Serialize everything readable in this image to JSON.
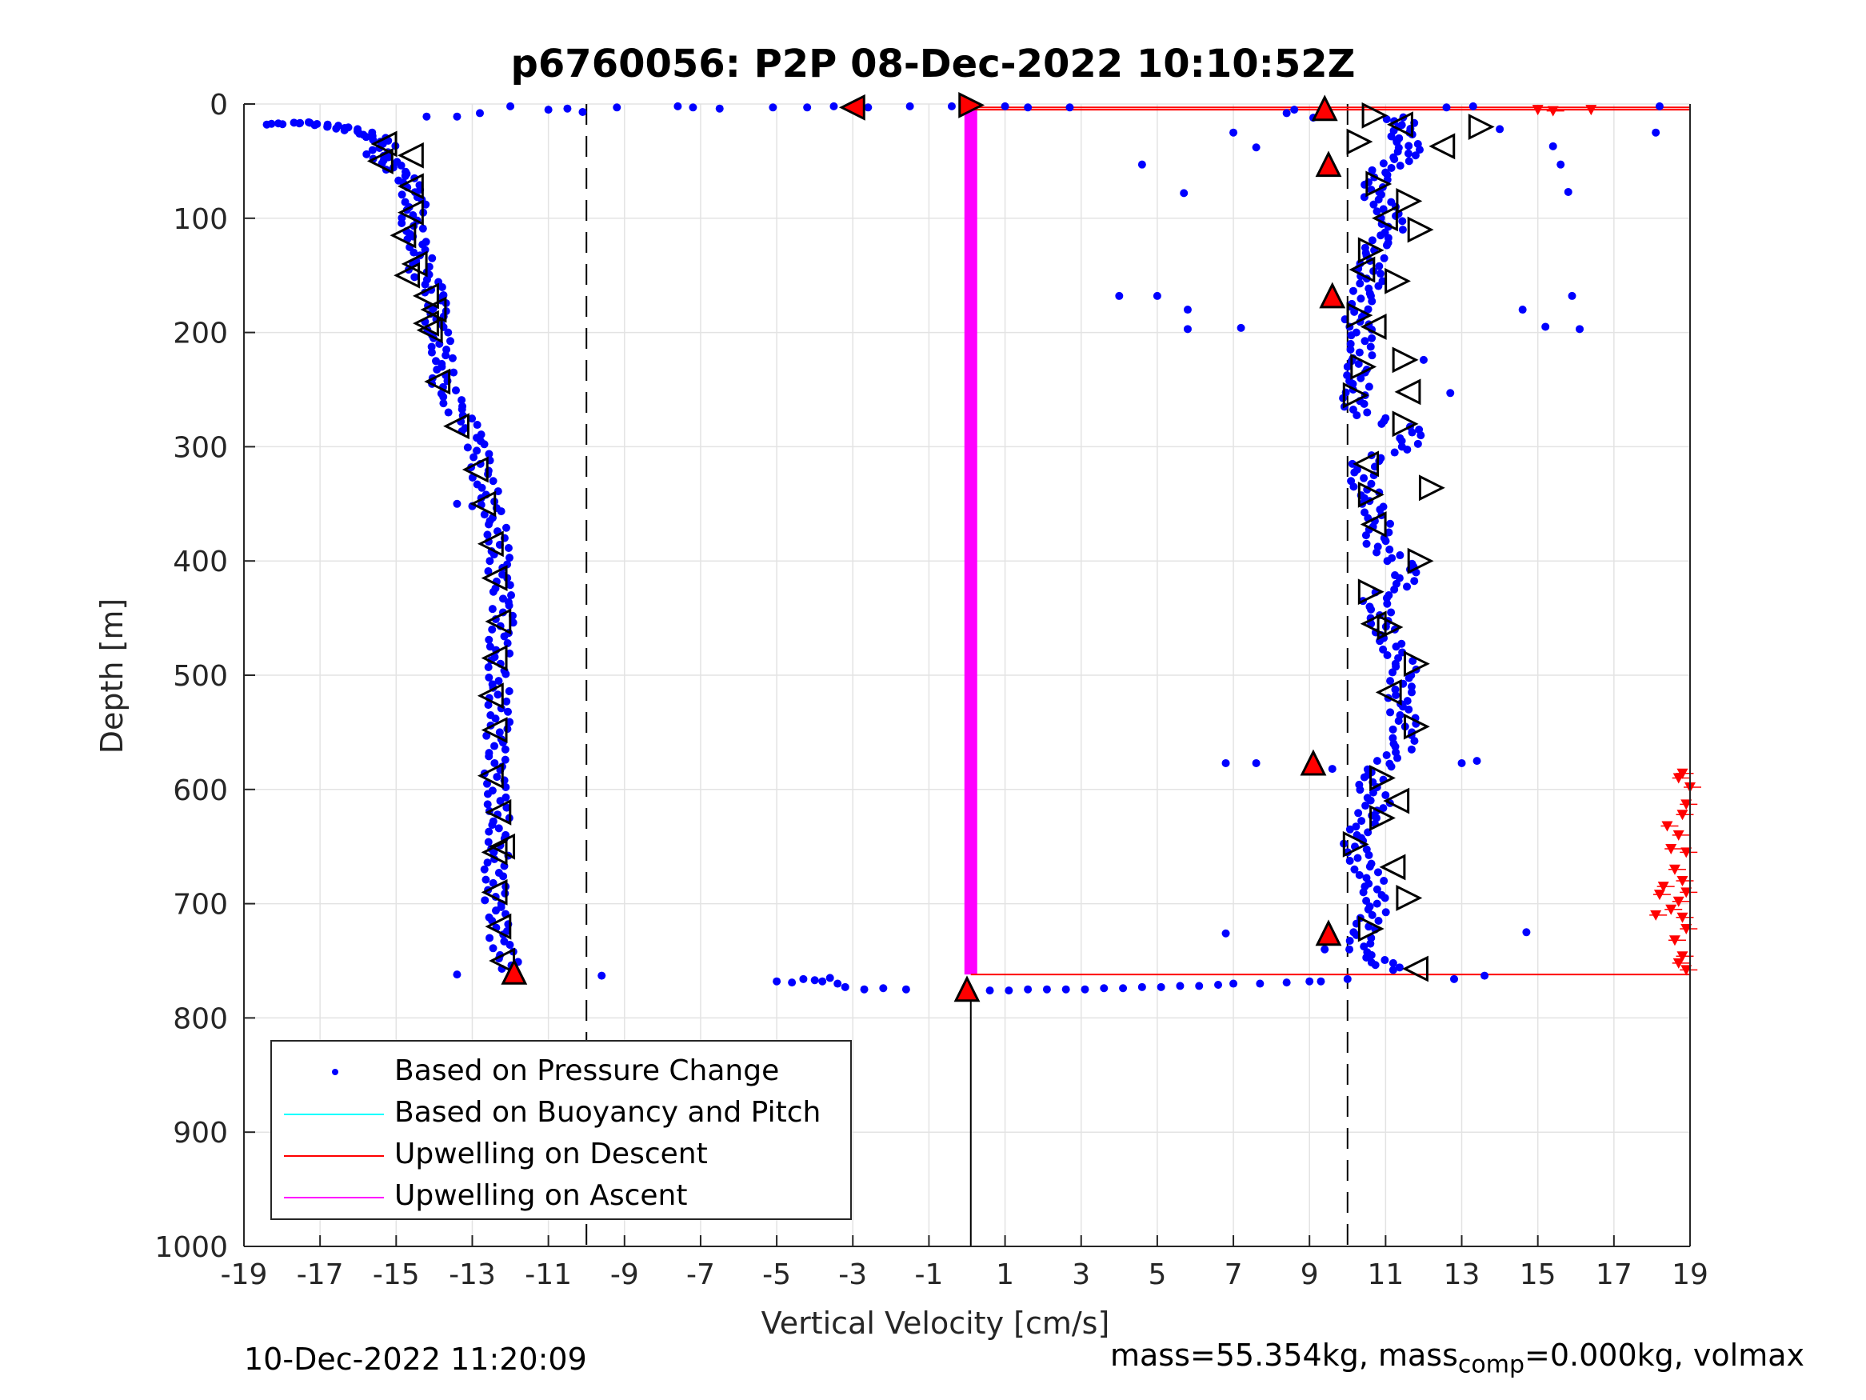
{
  "chart_data": {
    "type": "scatter",
    "title": "p6760056: P2P 08-Dec-2022 10:10:52Z",
    "xlabel": "Vertical Velocity [cm/s]",
    "ylabel": "Depth [m]",
    "xlim": [
      -19,
      19
    ],
    "ylim": [
      0,
      1000
    ],
    "y_reversed": true,
    "xticks": [
      "-19",
      "-17",
      "-15",
      "-13",
      "-11",
      "-9",
      "-7",
      "-5",
      "-3",
      "-1",
      "1",
      "3",
      "5",
      "7",
      "9",
      "11",
      "13",
      "15",
      "17",
      "19"
    ],
    "yticks": [
      "0",
      "100",
      "200",
      "300",
      "400",
      "500",
      "600",
      "700",
      "800",
      "900",
      "1000"
    ],
    "grid": true,
    "legend_position": "bottom-left",
    "legend": [
      {
        "label": "Based on Pressure Change",
        "marker": "dot",
        "color": "#0000ff"
      },
      {
        "label": "Based on Buoyancy and Pitch",
        "marker": "line",
        "color": "#00ffff"
      },
      {
        "label": "Upwelling on Descent",
        "marker": "line",
        "color": "#ff0000"
      },
      {
        "label": "Upwelling on Ascent",
        "marker": "line",
        "color": "#ff00ff"
      }
    ],
    "reference_lines": {
      "dashed_x": [
        -10,
        10
      ],
      "solid_x": 0.1,
      "solid_x_depth_from": 775
    },
    "descent_profile": [
      [
        -18.4,
        18
      ],
      [
        -17.5,
        16
      ],
      [
        -16.8,
        19
      ],
      [
        -16.2,
        22
      ],
      [
        -15.6,
        28
      ],
      [
        -15.2,
        33
      ],
      [
        -15.5,
        44
      ],
      [
        -15.2,
        52
      ],
      [
        -14.8,
        63
      ],
      [
        -14.6,
        75
      ],
      [
        -14.5,
        88
      ],
      [
        -14.6,
        102
      ],
      [
        -14.5,
        116
      ],
      [
        -14.3,
        130
      ],
      [
        -14.4,
        145
      ],
      [
        -14.1,
        158
      ],
      [
        -13.9,
        172
      ],
      [
        -14.0,
        186
      ],
      [
        -13.9,
        200
      ],
      [
        -13.8,
        215
      ],
      [
        -13.7,
        230
      ],
      [
        -13.8,
        245
      ],
      [
        -13.5,
        262
      ],
      [
        -13.2,
        278
      ],
      [
        -12.9,
        295
      ],
      [
        -12.8,
        312
      ],
      [
        -12.7,
        330
      ],
      [
        -12.5,
        348
      ],
      [
        -12.4,
        365
      ],
      [
        -12.3,
        383
      ],
      [
        -12.3,
        400
      ],
      [
        -12.3,
        418
      ],
      [
        -12.2,
        436
      ],
      [
        -12.2,
        454
      ],
      [
        -12.3,
        472
      ],
      [
        -12.3,
        490
      ],
      [
        -12.3,
        508
      ],
      [
        -12.3,
        526
      ],
      [
        -12.3,
        544
      ],
      [
        -12.4,
        562
      ],
      [
        -12.4,
        580
      ],
      [
        -12.4,
        598
      ],
      [
        -12.3,
        616
      ],
      [
        -12.3,
        634
      ],
      [
        -12.3,
        652
      ],
      [
        -12.4,
        670
      ],
      [
        -12.4,
        688
      ],
      [
        -12.4,
        706
      ],
      [
        -12.3,
        724
      ],
      [
        -12.2,
        742
      ],
      [
        -11.9,
        760
      ]
    ],
    "ascent_profile": [
      [
        11.2,
        758
      ],
      [
        10.4,
        745
      ],
      [
        10.3,
        730
      ],
      [
        10.6,
        715
      ],
      [
        10.8,
        700
      ],
      [
        10.7,
        685
      ],
      [
        10.5,
        670
      ],
      [
        10.2,
        655
      ],
      [
        10.2,
        640
      ],
      [
        10.5,
        625
      ],
      [
        10.8,
        612
      ],
      [
        10.6,
        598
      ],
      [
        10.7,
        585
      ],
      [
        11.3,
        570
      ],
      [
        11.5,
        555
      ],
      [
        11.5,
        540
      ],
      [
        11.3,
        525
      ],
      [
        11.4,
        510
      ],
      [
        11.5,
        495
      ],
      [
        11.3,
        480
      ],
      [
        11.0,
        465
      ],
      [
        10.9,
        450
      ],
      [
        10.7,
        435
      ],
      [
        11.4,
        420
      ],
      [
        11.6,
        405
      ],
      [
        10.8,
        390
      ],
      [
        10.8,
        375
      ],
      [
        10.8,
        360
      ],
      [
        10.6,
        345
      ],
      [
        10.4,
        330
      ],
      [
        10.4,
        315
      ],
      [
        11.5,
        300
      ],
      [
        11.7,
        285
      ],
      [
        10.2,
        270
      ],
      [
        10.2,
        255
      ],
      [
        10.3,
        240
      ],
      [
        10.3,
        225
      ],
      [
        10.4,
        210
      ],
      [
        10.3,
        195
      ],
      [
        10.2,
        182
      ],
      [
        10.4,
        168
      ],
      [
        10.6,
        155
      ],
      [
        10.6,
        142
      ],
      [
        10.7,
        128
      ],
      [
        11.1,
        115
      ],
      [
        11.2,
        100
      ],
      [
        10.9,
        88
      ],
      [
        10.6,
        75
      ],
      [
        10.8,
        62
      ],
      [
        11.3,
        50
      ],
      [
        11.7,
        40
      ],
      [
        11.4,
        30
      ],
      [
        11.6,
        20
      ],
      [
        11.1,
        10
      ]
    ],
    "scattered_points": [
      [
        -10.1,
        7
      ],
      [
        -10.5,
        4
      ],
      [
        -11.0,
        5
      ],
      [
        -12.0,
        2
      ],
      [
        -12.8,
        8
      ],
      [
        -13.4,
        11
      ],
      [
        -14.2,
        11
      ],
      [
        -9.2,
        3
      ],
      [
        -7.6,
        2
      ],
      [
        -7.2,
        3
      ],
      [
        -6.5,
        4
      ],
      [
        -5.1,
        3
      ],
      [
        -4.2,
        3
      ],
      [
        -3.5,
        2
      ],
      [
        -2.6,
        3
      ],
      [
        -1.5,
        2
      ],
      [
        -0.4,
        2
      ],
      [
        1.0,
        2
      ],
      [
        1.6,
        3
      ],
      [
        2.7,
        3
      ],
      [
        12.6,
        3
      ],
      [
        13.3,
        2
      ],
      [
        14.0,
        22
      ],
      [
        15.4,
        37
      ],
      [
        15.6,
        53
      ],
      [
        15.8,
        77
      ],
      [
        18.2,
        2
      ],
      [
        18.1,
        25
      ],
      [
        7.0,
        25
      ],
      [
        7.6,
        38
      ],
      [
        4.6,
        53
      ],
      [
        5.7,
        78
      ],
      [
        8.4,
        8
      ],
      [
        9.1,
        12
      ],
      [
        8.6,
        5
      ],
      [
        4.0,
        168
      ],
      [
        5.0,
        168
      ],
      [
        5.8,
        180
      ],
      [
        5.8,
        197
      ],
      [
        7.2,
        196
      ],
      [
        14.6,
        180
      ],
      [
        15.2,
        195
      ],
      [
        15.9,
        168
      ],
      [
        16.1,
        197
      ],
      [
        12.0,
        224
      ],
      [
        12.7,
        253
      ],
      [
        -13.4,
        350
      ],
      [
        -13.0,
        352
      ],
      [
        6.8,
        577
      ],
      [
        7.6,
        577
      ],
      [
        9.6,
        582
      ],
      [
        13.0,
        577
      ],
      [
        13.4,
        575
      ],
      [
        6.8,
        726
      ],
      [
        14.7,
        725
      ],
      [
        9.4,
        740
      ],
      [
        11.2,
        752
      ],
      [
        12.8,
        766
      ],
      [
        13.6,
        763
      ],
      [
        -9.6,
        763
      ],
      [
        -13.4,
        762
      ],
      [
        -5.0,
        768
      ],
      [
        -4.6,
        769
      ],
      [
        -4.3,
        766
      ],
      [
        -4.0,
        767
      ],
      [
        -3.8,
        768
      ],
      [
        -3.6,
        765
      ],
      [
        -3.4,
        770
      ],
      [
        -3.2,
        773
      ],
      [
        -2.7,
        775
      ],
      [
        -2.2,
        774
      ],
      [
        -1.6,
        775
      ],
      [
        0.6,
        776
      ],
      [
        1.1,
        776
      ],
      [
        1.6,
        775
      ],
      [
        2.1,
        775
      ],
      [
        2.6,
        775
      ],
      [
        3.1,
        775
      ],
      [
        3.6,
        774
      ],
      [
        4.1,
        774
      ],
      [
        4.6,
        773
      ],
      [
        5.1,
        773
      ],
      [
        5.6,
        772
      ],
      [
        6.1,
        772
      ],
      [
        6.6,
        771
      ],
      [
        7.0,
        770
      ],
      [
        7.7,
        770
      ],
      [
        8.4,
        769
      ],
      [
        9.0,
        768
      ],
      [
        9.3,
        768
      ],
      [
        10.0,
        766
      ]
    ],
    "descent_triangles": [
      [
        -15.3,
        35
      ],
      [
        -15.4,
        50
      ],
      [
        -14.6,
        45
      ],
      [
        -14.6,
        72
      ],
      [
        -14.6,
        95
      ],
      [
        -14.8,
        115
      ],
      [
        -14.5,
        140
      ],
      [
        -14.7,
        150
      ],
      [
        -14.2,
        168
      ],
      [
        -14.0,
        180
      ],
      [
        -14.2,
        192
      ],
      [
        -14.1,
        198
      ],
      [
        -13.9,
        243
      ],
      [
        -13.4,
        282
      ],
      [
        -12.9,
        320
      ],
      [
        -12.7,
        350
      ],
      [
        -12.5,
        385
      ],
      [
        -12.4,
        415
      ],
      [
        -12.3,
        453
      ],
      [
        -12.4,
        485
      ],
      [
        -12.5,
        518
      ],
      [
        -12.4,
        548
      ],
      [
        -12.5,
        588
      ],
      [
        -12.3,
        620
      ],
      [
        -12.4,
        655
      ],
      [
        -12.2,
        650
      ],
      [
        -12.4,
        690
      ],
      [
        -12.3,
        720
      ],
      [
        -12.2,
        750
      ]
    ],
    "ascent_triangles": [
      [
        10.7,
        10
      ],
      [
        11.4,
        18
      ],
      [
        13.5,
        20
      ],
      [
        10.3,
        33
      ],
      [
        12.5,
        37
      ],
      [
        10.8,
        70
      ],
      [
        11.6,
        85
      ],
      [
        11.0,
        100
      ],
      [
        11.9,
        110
      ],
      [
        10.6,
        128
      ],
      [
        10.4,
        145
      ],
      [
        11.3,
        155
      ],
      [
        10.3,
        185
      ],
      [
        10.7,
        195
      ],
      [
        11.5,
        224
      ],
      [
        10.4,
        230
      ],
      [
        11.6,
        252
      ],
      [
        10.2,
        255
      ],
      [
        11.5,
        280
      ],
      [
        10.5,
        315
      ],
      [
        12.2,
        336
      ],
      [
        10.6,
        342
      ],
      [
        10.7,
        368
      ],
      [
        11.9,
        400
      ],
      [
        10.6,
        427
      ],
      [
        10.7,
        455
      ],
      [
        11.1,
        458
      ],
      [
        11.8,
        490
      ],
      [
        11.1,
        515
      ],
      [
        11.8,
        545
      ],
      [
        10.9,
        590
      ],
      [
        11.3,
        610
      ],
      [
        10.9,
        625
      ],
      [
        10.2,
        648
      ],
      [
        11.2,
        668
      ],
      [
        11.6,
        695
      ],
      [
        10.6,
        722
      ],
      [
        11.8,
        757
      ]
    ],
    "flagged_triangles": [
      {
        "x": -3.0,
        "y": 3,
        "dir": "left"
      },
      {
        "x": 0.1,
        "y": 1,
        "dir": "right"
      },
      {
        "x": 9.4,
        "y": 4,
        "dir": "up"
      },
      {
        "x": 9.5,
        "y": 53,
        "dir": "up"
      },
      {
        "x": 9.6,
        "y": 168,
        "dir": "up"
      },
      {
        "x": 9.1,
        "y": 577,
        "dir": "up"
      },
      {
        "x": 9.5,
        "y": 726,
        "dir": "up"
      },
      {
        "x": -11.9,
        "y": 760,
        "dir": "up"
      },
      {
        "x": 0.0,
        "y": 775,
        "dir": "up"
      }
    ],
    "upwelling_descent_lines": [
      {
        "x": [
          0.1,
          19
        ],
        "y": [
          3,
          3
        ]
      },
      {
        "x": [
          0.1,
          19
        ],
        "y": [
          5,
          5
        ]
      },
      {
        "x": [
          0.1,
          19
        ],
        "y": [
          762,
          762
        ]
      }
    ],
    "upwelling_descent_points": [
      [
        15.0,
        5
      ],
      [
        15.4,
        6
      ],
      [
        16.4,
        5
      ],
      [
        18.8,
        586
      ],
      [
        18.7,
        590
      ],
      [
        19.0,
        598
      ],
      [
        18.9,
        613
      ],
      [
        18.8,
        622
      ],
      [
        18.4,
        632
      ],
      [
        18.7,
        640
      ],
      [
        18.5,
        652
      ],
      [
        18.9,
        655
      ],
      [
        18.6,
        670
      ],
      [
        18.8,
        680
      ],
      [
        18.3,
        685
      ],
      [
        18.9,
        690
      ],
      [
        18.7,
        698
      ],
      [
        18.5,
        705
      ],
      [
        18.8,
        712
      ],
      [
        18.9,
        722
      ],
      [
        18.6,
        732
      ],
      [
        18.8,
        746
      ],
      [
        18.7,
        752
      ],
      [
        18.9,
        758
      ],
      [
        18.2,
        692
      ],
      [
        18.1,
        710
      ]
    ],
    "upwelling_ascent_line": {
      "x": [
        0.1,
        0.1
      ],
      "y": [
        0,
        762
      ]
    }
  },
  "footer": {
    "timestamp": "10-Dec-2022 11:20:09",
    "mass_prefix": "mass=55.354kg, mass",
    "mass_sub": "comp",
    "mass_suffix": "=0.000kg, volmax"
  }
}
